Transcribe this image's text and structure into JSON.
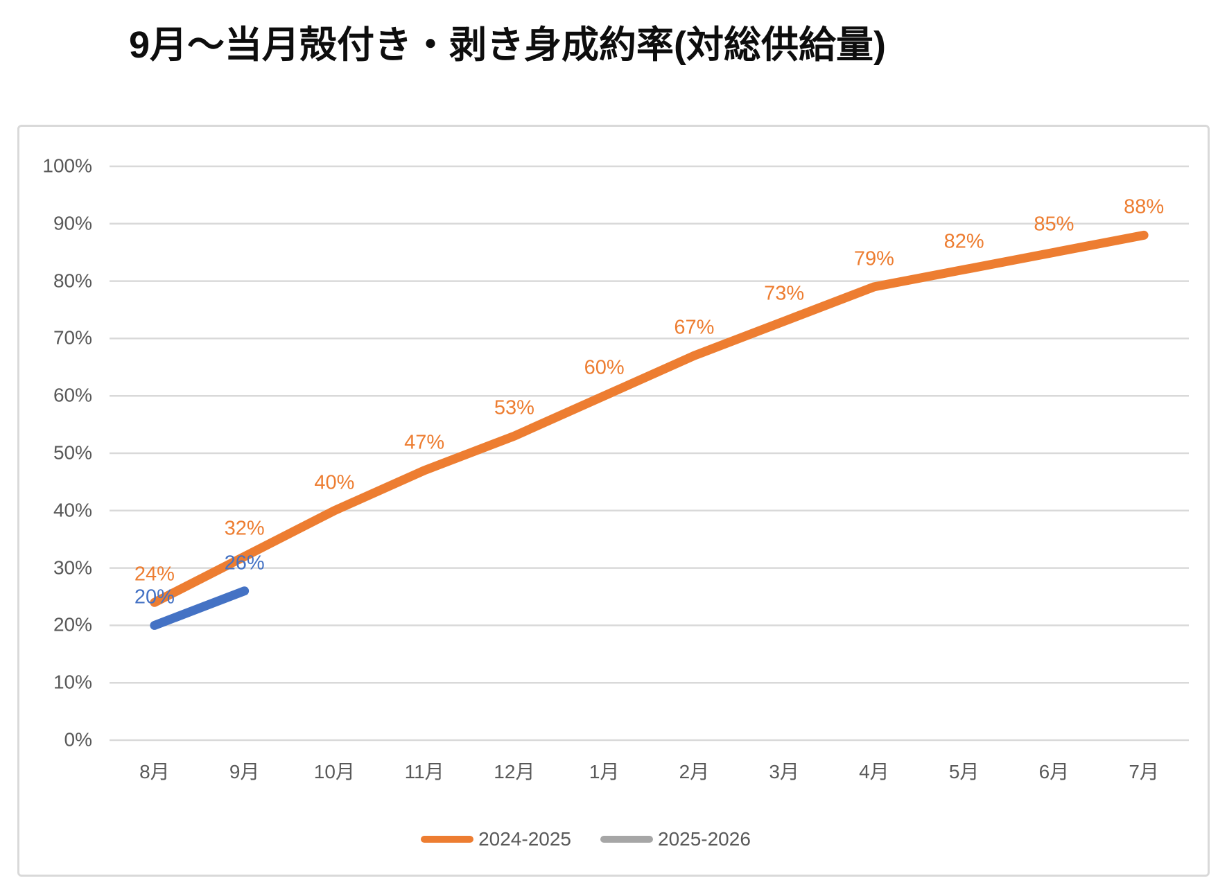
{
  "chart_data": {
    "type": "line",
    "title": "9月〜当月殻付き・剥き身成約率(対総供給量)",
    "categories": [
      "8月",
      "9月",
      "10月",
      "11月",
      "12月",
      "1月",
      "2月",
      "3月",
      "4月",
      "5月",
      "6月",
      "7月"
    ],
    "series": [
      {
        "name": "2024-2025",
        "line_color": "#ED7D31",
        "label_color": "#ED7D31",
        "legend_color": "#ED7D31",
        "values": [
          24,
          32,
          40,
          47,
          53,
          60,
          67,
          73,
          79,
          82,
          85,
          88
        ]
      },
      {
        "name": "2025-2026",
        "line_color": "#4472C4",
        "label_color": "#4472C4",
        "legend_color": "#A6A6A6",
        "values": [
          20,
          26
        ]
      }
    ],
    "ylim": [
      0,
      100
    ],
    "ytick_step": 10,
    "yticks": [
      "0%",
      "10%",
      "20%",
      "30%",
      "40%",
      "50%",
      "60%",
      "70%",
      "80%",
      "90%",
      "100%"
    ],
    "data_label_suffix": "%",
    "grid": true,
    "legend_position": "bottom",
    "colors": {
      "gridline": "#D9D9D9",
      "axis_text": "#595959",
      "frame_border": "#D9D9D9",
      "background": "#FFFFFF"
    }
  }
}
